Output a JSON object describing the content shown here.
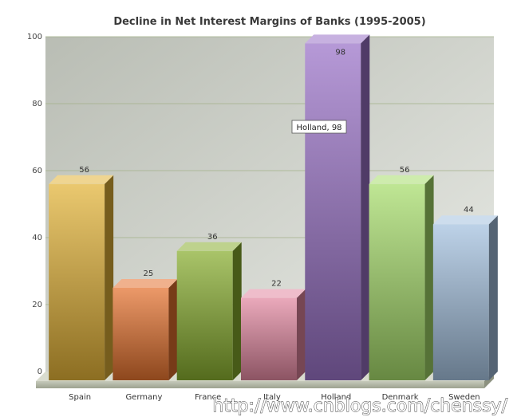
{
  "chart_data": {
    "type": "bar",
    "title": "Decline in Net Interest Margins of Banks (1995-2005)",
    "categories": [
      "Spain",
      "Germany",
      "France",
      "Italy",
      "Holland",
      "Denmark",
      "Sweden"
    ],
    "values": [
      56,
      25,
      36,
      22,
      98,
      56,
      44
    ],
    "value_labels": [
      "56",
      "25",
      "36",
      "22",
      "98",
      "56",
      "44"
    ],
    "yticks": [
      "0",
      "20",
      "40",
      "60",
      "80",
      "100"
    ],
    "ylim": [
      0,
      100
    ],
    "grid": true,
    "bar_colors": [
      "#e2b237",
      "#e4722f",
      "#88ad2f",
      "#e287a0",
      "#9a72c7",
      "#a6dc6a",
      "#a4c1df"
    ],
    "tooltip": "Holland, 98",
    "watermark": "http://www.cnblogs.com/chenssy/"
  }
}
